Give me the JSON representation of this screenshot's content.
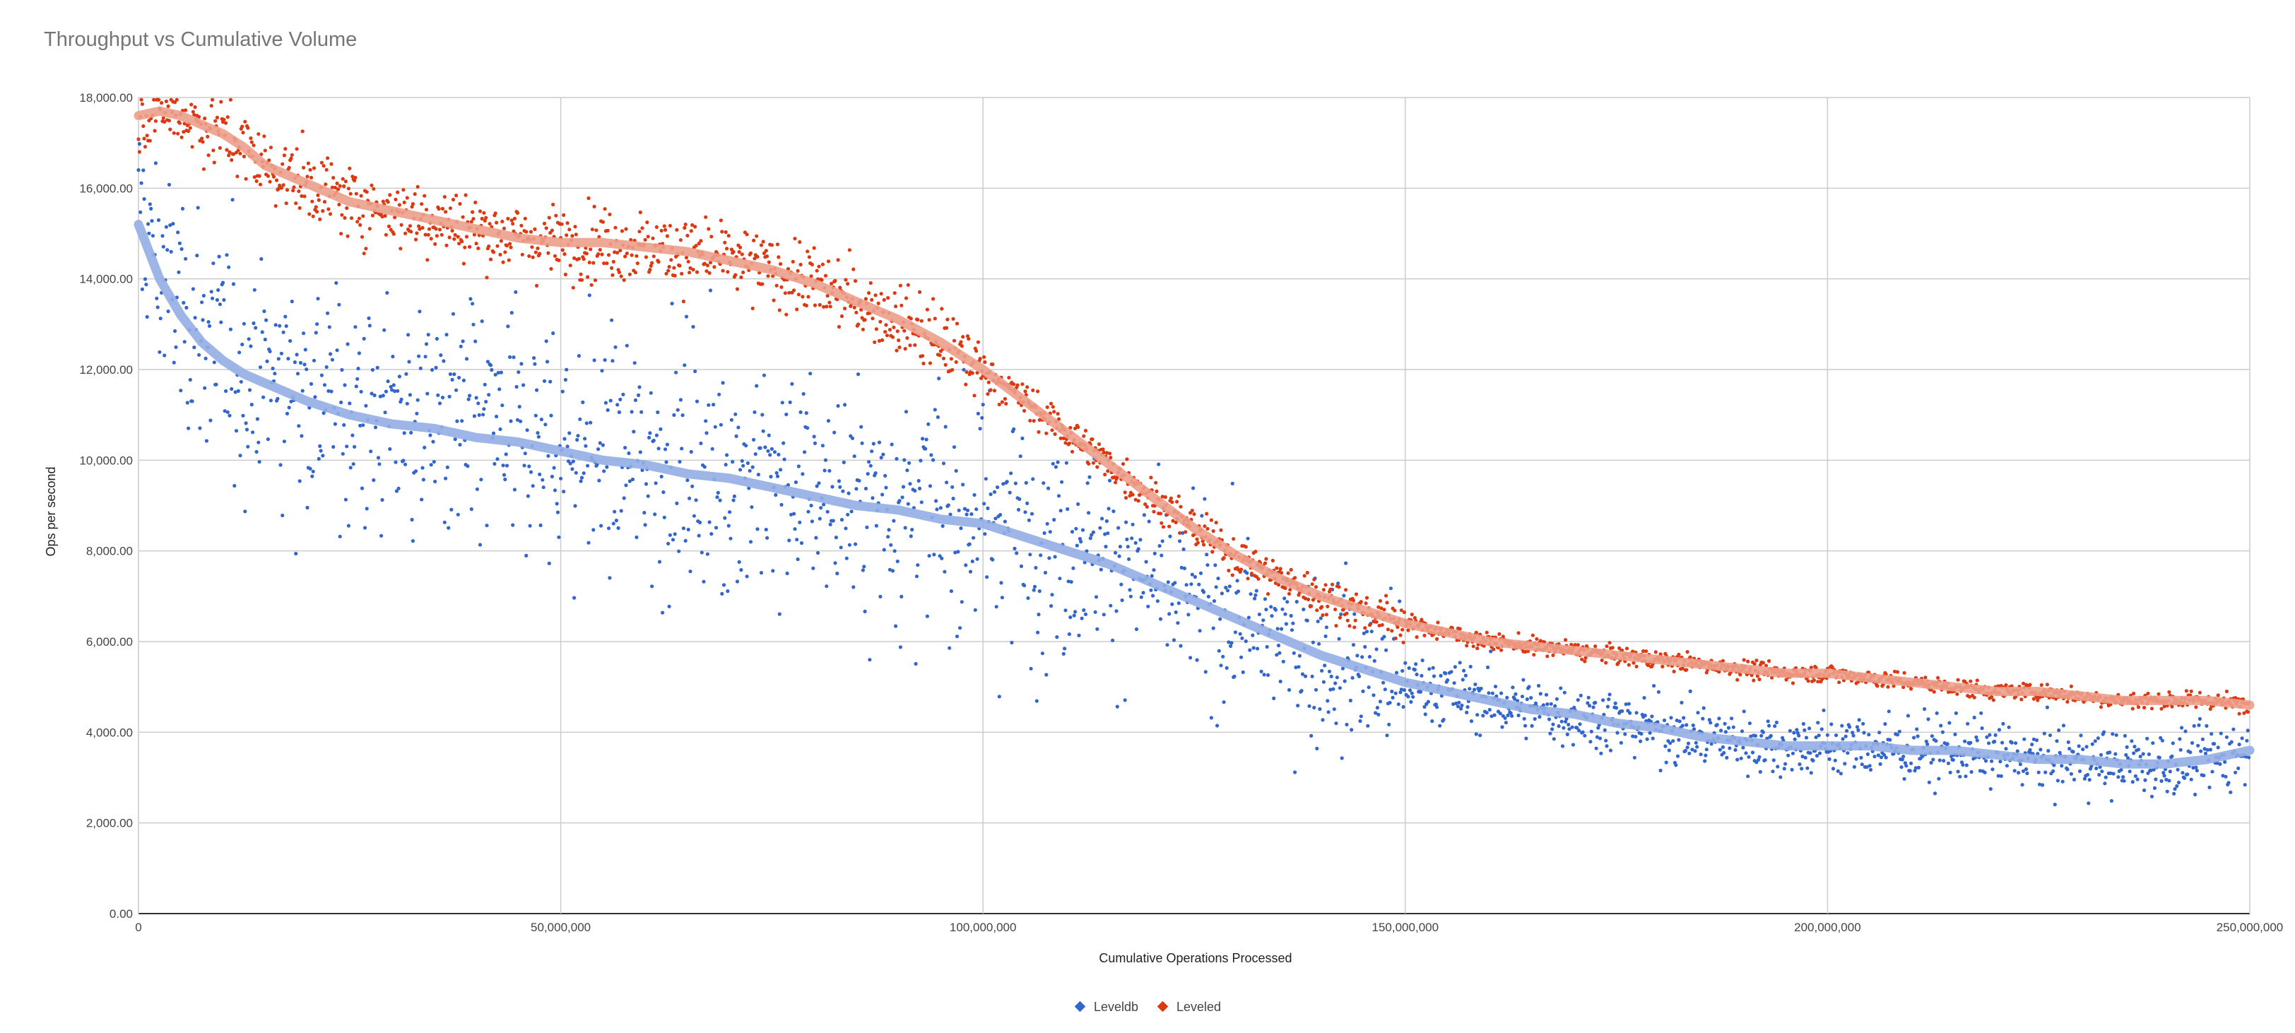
{
  "chart_data": {
    "type": "scatter",
    "title": "Throughput vs Cumulative Volume",
    "xlabel": "Cumulative Operations Processed",
    "ylabel": "Ops per second",
    "xlim": [
      0,
      250000000
    ],
    "ylim": [
      0,
      18000
    ],
    "x_ticks": [
      0,
      50000000,
      100000000,
      150000000,
      200000000,
      250000000
    ],
    "x_tick_labels": [
      "0",
      "50,000,000",
      "100,000,000",
      "150,000,000",
      "200,000,000",
      "250,000,000"
    ],
    "y_ticks": [
      0,
      2000,
      4000,
      6000,
      8000,
      10000,
      12000,
      14000,
      16000,
      18000
    ],
    "y_tick_labels": [
      "0.00",
      "2,000.00",
      "4,000.00",
      "6,000.00",
      "8,000.00",
      "10,000.00",
      "12,000.00",
      "14,000.00",
      "16,000.00",
      "18,000.00"
    ],
    "grid": true,
    "legend_position": "bottom",
    "trendline": "polynomial",
    "series": [
      {
        "name": "Leveldb",
        "color": "#3366cc",
        "trend_color": "#93aee4",
        "x": [
          0,
          2500000,
          5000000,
          7500000,
          10000000,
          12500000,
          15000000,
          20000000,
          25000000,
          30000000,
          35000000,
          40000000,
          45000000,
          50000000,
          55000000,
          60000000,
          65000000,
          70000000,
          75000000,
          80000000,
          85000000,
          90000000,
          95000000,
          100000000,
          105000000,
          110000000,
          115000000,
          120000000,
          125000000,
          130000000,
          135000000,
          140000000,
          145000000,
          150000000,
          155000000,
          160000000,
          165000000,
          170000000,
          175000000,
          180000000,
          185000000,
          190000000,
          195000000,
          200000000,
          205000000,
          210000000,
          215000000,
          220000000,
          225000000,
          230000000,
          235000000,
          240000000,
          245000000,
          250000000
        ],
        "y": [
          15200,
          14000,
          13200,
          12600,
          12200,
          11900,
          11700,
          11300,
          11000,
          10800,
          10700,
          10500,
          10400,
          10200,
          10000,
          9900,
          9700,
          9600,
          9400,
          9200,
          9000,
          8900,
          8700,
          8600,
          8300,
          8000,
          7700,
          7300,
          6900,
          6500,
          6100,
          5700,
          5400,
          5100,
          4900,
          4700,
          4500,
          4400,
          4200,
          4100,
          3900,
          3800,
          3700,
          3700,
          3700,
          3600,
          3600,
          3500,
          3400,
          3400,
          3300,
          3300,
          3400,
          3600
        ]
      },
      {
        "name": "Leveled",
        "color": "#dc3912",
        "trend_color": "#ec9e8b",
        "x": [
          0,
          2500000,
          5000000,
          7500000,
          10000000,
          12500000,
          15000000,
          20000000,
          25000000,
          30000000,
          35000000,
          40000000,
          45000000,
          50000000,
          55000000,
          60000000,
          65000000,
          70000000,
          75000000,
          80000000,
          85000000,
          90000000,
          95000000,
          100000000,
          105000000,
          110000000,
          115000000,
          120000000,
          125000000,
          130000000,
          135000000,
          140000000,
          145000000,
          150000000,
          155000000,
          160000000,
          165000000,
          170000000,
          175000000,
          180000000,
          185000000,
          190000000,
          195000000,
          200000000,
          205000000,
          210000000,
          215000000,
          220000000,
          225000000,
          230000000,
          235000000,
          240000000,
          245000000,
          250000000
        ],
        "y": [
          17600,
          17700,
          17600,
          17400,
          17200,
          16900,
          16500,
          16100,
          15700,
          15500,
          15300,
          15100,
          14900,
          14800,
          14800,
          14700,
          14600,
          14400,
          14200,
          13900,
          13500,
          13100,
          12600,
          12000,
          11300,
          10600,
          9900,
          9200,
          8500,
          7900,
          7400,
          7000,
          6700,
          6400,
          6200,
          6000,
          5900,
          5800,
          5700,
          5600,
          5500,
          5400,
          5300,
          5300,
          5200,
          5100,
          5000,
          4900,
          4900,
          4800,
          4700,
          4700,
          4700,
          4600
        ]
      }
    ]
  }
}
